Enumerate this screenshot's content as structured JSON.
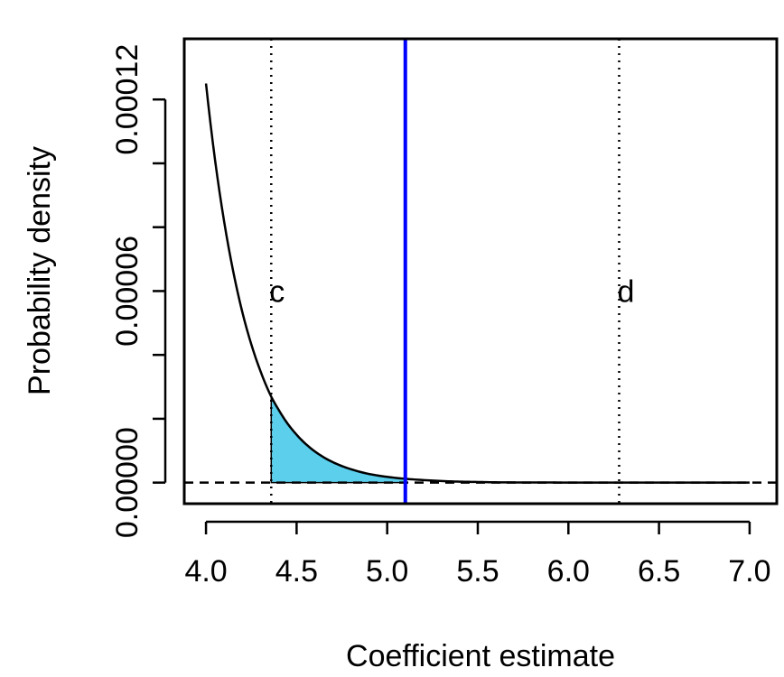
{
  "chart_data": {
    "type": "line",
    "title": "",
    "xlabel": "Coefficient estimate",
    "ylabel": "Probability density",
    "xlim": [
      3.88,
      7.15
    ],
    "ylim": [
      -6.6e-06,
      0.000139
    ],
    "x_ticks": [
      4.0,
      4.5,
      5.0,
      5.5,
      6.0,
      6.5,
      7.0
    ],
    "x_tick_labels": [
      "4.0",
      "4.5",
      "5.0",
      "5.5",
      "6.0",
      "6.5",
      "7.0"
    ],
    "y_ticks": [
      0,
      2e-05,
      4e-05,
      6e-05,
      8e-05,
      0.0001,
      0.00012
    ],
    "y_tick_labels": [
      "0.00000",
      "0.00006",
      "0.00012"
    ],
    "y_labeled_ticks": [
      0,
      6e-05,
      0.00012
    ],
    "grid": false,
    "series": [
      {
        "x": [
          4.0,
          4.05,
          4.1,
          4.15,
          4.2,
          4.25,
          4.3,
          4.36,
          4.4,
          4.45,
          4.5,
          4.6,
          4.7,
          4.8,
          4.9,
          5.0,
          5.1,
          5.2,
          5.3,
          5.4,
          5.5,
          5.6,
          5.8,
          6.0,
          6.5,
          7.0
        ],
        "y": [
          0.000125,
          0.000101,
          8.18e-05,
          6.62e-05,
          5.35e-05,
          4.33e-05,
          3.5e-05,
          2.69e-05,
          2.29e-05,
          1.85e-05,
          1.5e-05,
          9.8e-06,
          6.4e-06,
          4.2e-06,
          2.7e-06,
          1.8e-06,
          1.2e-06,
          8e-07,
          5e-07,
          3e-07,
          2e-07,
          1e-07,
          4e-08,
          2e-08,
          0.0,
          0.0
        ],
        "color": "#000000"
      }
    ],
    "shaded_region": {
      "x_from": 4.36,
      "x_to": 5.1,
      "color": "#5bcfec"
    },
    "vertical_lines": [
      {
        "x": 4.36,
        "style": "dotted",
        "color": "#000000",
        "label": "c"
      },
      {
        "x": 5.1,
        "style": "solid",
        "color": "#0000ff",
        "label": ""
      },
      {
        "x": 6.28,
        "style": "dotted",
        "color": "#000000",
        "label": "d"
      }
    ],
    "horizontal_lines": [
      {
        "y": 0,
        "style": "dashed",
        "color": "#000000"
      }
    ],
    "annotation_y": 6e-05
  }
}
